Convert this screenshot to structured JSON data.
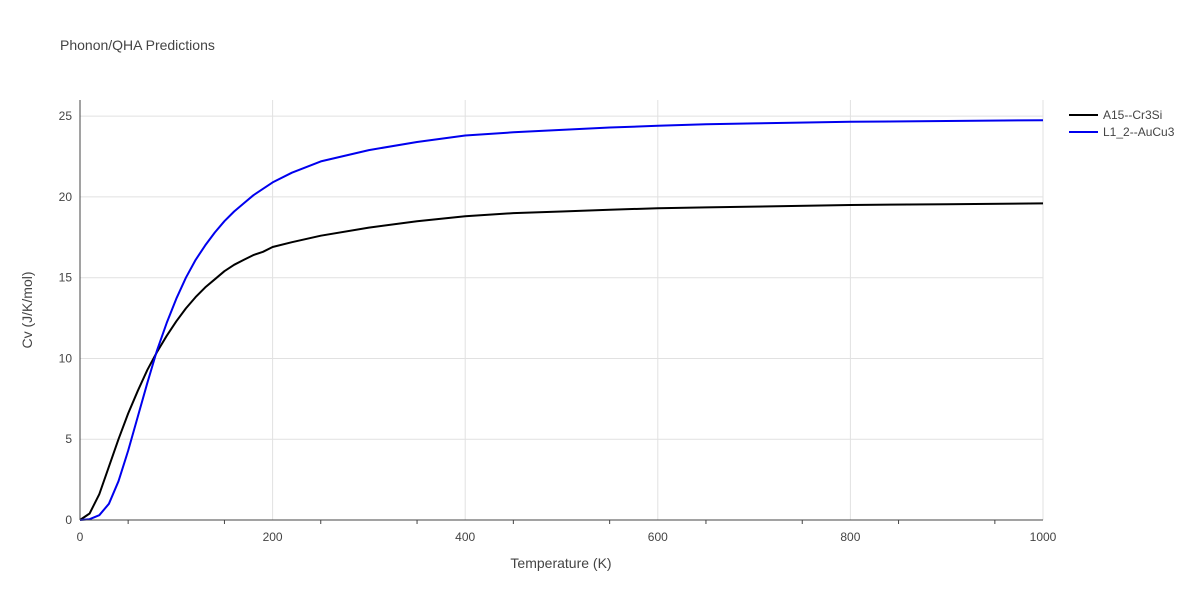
{
  "chart_data": {
    "type": "line",
    "title": "Phonon/QHA Predictions",
    "xlabel": "Temperature (K)",
    "ylabel": "Cv (J/K/mol)",
    "xlim": [
      0,
      1000
    ],
    "ylim": [
      0,
      26
    ],
    "xticks": [
      0,
      200,
      400,
      600,
      800,
      1000
    ],
    "yticks": [
      0,
      5,
      10,
      15,
      20,
      25
    ],
    "grid": true,
    "legend_position": "top-right",
    "series": [
      {
        "name": "A15--Cr3Si",
        "color": "#000000",
        "x": [
          0,
          10,
          20,
          30,
          40,
          50,
          60,
          70,
          80,
          90,
          100,
          110,
          120,
          130,
          140,
          150,
          160,
          170,
          180,
          190,
          200,
          220,
          250,
          300,
          350,
          400,
          450,
          500,
          550,
          600,
          650,
          700,
          800,
          900,
          1000
        ],
        "y": [
          0,
          0.4,
          1.6,
          3.3,
          5.0,
          6.6,
          8.0,
          9.3,
          10.4,
          11.4,
          12.3,
          13.1,
          13.8,
          14.4,
          14.9,
          15.4,
          15.8,
          16.1,
          16.4,
          16.6,
          16.9,
          17.2,
          17.6,
          18.1,
          18.5,
          18.8,
          19.0,
          19.1,
          19.2,
          19.3,
          19.35,
          19.4,
          19.5,
          19.55,
          19.6
        ]
      },
      {
        "name": "L1_2--AuCu3",
        "color": "#0000ee",
        "x": [
          0,
          10,
          20,
          30,
          40,
          50,
          60,
          70,
          80,
          90,
          100,
          110,
          120,
          130,
          140,
          150,
          160,
          170,
          180,
          190,
          200,
          220,
          250,
          300,
          350,
          400,
          450,
          500,
          550,
          600,
          650,
          700,
          800,
          900,
          1000
        ],
        "y": [
          0,
          0.05,
          0.3,
          1.0,
          2.4,
          4.3,
          6.4,
          8.5,
          10.5,
          12.2,
          13.7,
          15.0,
          16.1,
          17.0,
          17.8,
          18.5,
          19.1,
          19.6,
          20.1,
          20.5,
          20.9,
          21.5,
          22.2,
          22.9,
          23.4,
          23.8,
          24.0,
          24.15,
          24.3,
          24.4,
          24.5,
          24.55,
          24.65,
          24.7,
          24.75
        ]
      }
    ]
  }
}
